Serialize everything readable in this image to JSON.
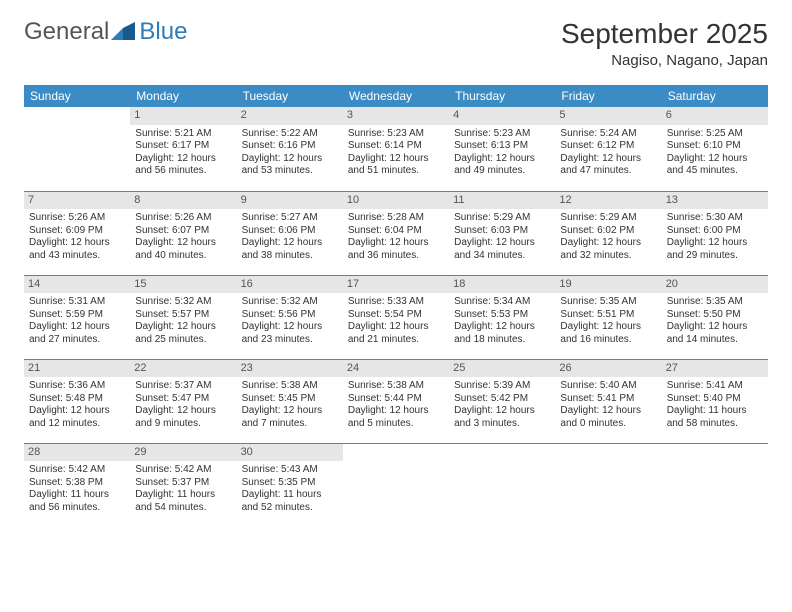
{
  "brand": {
    "general": "General",
    "blue": "Blue"
  },
  "title": "September 2025",
  "location": "Nagiso, Nagano, Japan",
  "colors": {
    "header_bg": "#3b8bc4",
    "header_text": "#ffffff",
    "daynum_bg": "#e6e6e6",
    "daynum_text": "#555555",
    "border": "#3b8bc4",
    "logo_gray": "#555555",
    "logo_blue": "#2d7bb8"
  },
  "weekdays": [
    "Sunday",
    "Monday",
    "Tuesday",
    "Wednesday",
    "Thursday",
    "Friday",
    "Saturday"
  ],
  "weeks": [
    [
      {
        "empty": true
      },
      {
        "n": "1",
        "sr": "Sunrise: 5:21 AM",
        "ss": "Sunset: 6:17 PM",
        "d1": "Daylight: 12 hours",
        "d2": "and 56 minutes."
      },
      {
        "n": "2",
        "sr": "Sunrise: 5:22 AM",
        "ss": "Sunset: 6:16 PM",
        "d1": "Daylight: 12 hours",
        "d2": "and 53 minutes."
      },
      {
        "n": "3",
        "sr": "Sunrise: 5:23 AM",
        "ss": "Sunset: 6:14 PM",
        "d1": "Daylight: 12 hours",
        "d2": "and 51 minutes."
      },
      {
        "n": "4",
        "sr": "Sunrise: 5:23 AM",
        "ss": "Sunset: 6:13 PM",
        "d1": "Daylight: 12 hours",
        "d2": "and 49 minutes."
      },
      {
        "n": "5",
        "sr": "Sunrise: 5:24 AM",
        "ss": "Sunset: 6:12 PM",
        "d1": "Daylight: 12 hours",
        "d2": "and 47 minutes."
      },
      {
        "n": "6",
        "sr": "Sunrise: 5:25 AM",
        "ss": "Sunset: 6:10 PM",
        "d1": "Daylight: 12 hours",
        "d2": "and 45 minutes."
      }
    ],
    [
      {
        "n": "7",
        "sr": "Sunrise: 5:26 AM",
        "ss": "Sunset: 6:09 PM",
        "d1": "Daylight: 12 hours",
        "d2": "and 43 minutes."
      },
      {
        "n": "8",
        "sr": "Sunrise: 5:26 AM",
        "ss": "Sunset: 6:07 PM",
        "d1": "Daylight: 12 hours",
        "d2": "and 40 minutes."
      },
      {
        "n": "9",
        "sr": "Sunrise: 5:27 AM",
        "ss": "Sunset: 6:06 PM",
        "d1": "Daylight: 12 hours",
        "d2": "and 38 minutes."
      },
      {
        "n": "10",
        "sr": "Sunrise: 5:28 AM",
        "ss": "Sunset: 6:04 PM",
        "d1": "Daylight: 12 hours",
        "d2": "and 36 minutes."
      },
      {
        "n": "11",
        "sr": "Sunrise: 5:29 AM",
        "ss": "Sunset: 6:03 PM",
        "d1": "Daylight: 12 hours",
        "d2": "and 34 minutes."
      },
      {
        "n": "12",
        "sr": "Sunrise: 5:29 AM",
        "ss": "Sunset: 6:02 PM",
        "d1": "Daylight: 12 hours",
        "d2": "and 32 minutes."
      },
      {
        "n": "13",
        "sr": "Sunrise: 5:30 AM",
        "ss": "Sunset: 6:00 PM",
        "d1": "Daylight: 12 hours",
        "d2": "and 29 minutes."
      }
    ],
    [
      {
        "n": "14",
        "sr": "Sunrise: 5:31 AM",
        "ss": "Sunset: 5:59 PM",
        "d1": "Daylight: 12 hours",
        "d2": "and 27 minutes."
      },
      {
        "n": "15",
        "sr": "Sunrise: 5:32 AM",
        "ss": "Sunset: 5:57 PM",
        "d1": "Daylight: 12 hours",
        "d2": "and 25 minutes."
      },
      {
        "n": "16",
        "sr": "Sunrise: 5:32 AM",
        "ss": "Sunset: 5:56 PM",
        "d1": "Daylight: 12 hours",
        "d2": "and 23 minutes."
      },
      {
        "n": "17",
        "sr": "Sunrise: 5:33 AM",
        "ss": "Sunset: 5:54 PM",
        "d1": "Daylight: 12 hours",
        "d2": "and 21 minutes."
      },
      {
        "n": "18",
        "sr": "Sunrise: 5:34 AM",
        "ss": "Sunset: 5:53 PM",
        "d1": "Daylight: 12 hours",
        "d2": "and 18 minutes."
      },
      {
        "n": "19",
        "sr": "Sunrise: 5:35 AM",
        "ss": "Sunset: 5:51 PM",
        "d1": "Daylight: 12 hours",
        "d2": "and 16 minutes."
      },
      {
        "n": "20",
        "sr": "Sunrise: 5:35 AM",
        "ss": "Sunset: 5:50 PM",
        "d1": "Daylight: 12 hours",
        "d2": "and 14 minutes."
      }
    ],
    [
      {
        "n": "21",
        "sr": "Sunrise: 5:36 AM",
        "ss": "Sunset: 5:48 PM",
        "d1": "Daylight: 12 hours",
        "d2": "and 12 minutes."
      },
      {
        "n": "22",
        "sr": "Sunrise: 5:37 AM",
        "ss": "Sunset: 5:47 PM",
        "d1": "Daylight: 12 hours",
        "d2": "and 9 minutes."
      },
      {
        "n": "23",
        "sr": "Sunrise: 5:38 AM",
        "ss": "Sunset: 5:45 PM",
        "d1": "Daylight: 12 hours",
        "d2": "and 7 minutes."
      },
      {
        "n": "24",
        "sr": "Sunrise: 5:38 AM",
        "ss": "Sunset: 5:44 PM",
        "d1": "Daylight: 12 hours",
        "d2": "and 5 minutes."
      },
      {
        "n": "25",
        "sr": "Sunrise: 5:39 AM",
        "ss": "Sunset: 5:42 PM",
        "d1": "Daylight: 12 hours",
        "d2": "and 3 minutes."
      },
      {
        "n": "26",
        "sr": "Sunrise: 5:40 AM",
        "ss": "Sunset: 5:41 PM",
        "d1": "Daylight: 12 hours",
        "d2": "and 0 minutes."
      },
      {
        "n": "27",
        "sr": "Sunrise: 5:41 AM",
        "ss": "Sunset: 5:40 PM",
        "d1": "Daylight: 11 hours",
        "d2": "and 58 minutes."
      }
    ],
    [
      {
        "n": "28",
        "sr": "Sunrise: 5:42 AM",
        "ss": "Sunset: 5:38 PM",
        "d1": "Daylight: 11 hours",
        "d2": "and 56 minutes."
      },
      {
        "n": "29",
        "sr": "Sunrise: 5:42 AM",
        "ss": "Sunset: 5:37 PM",
        "d1": "Daylight: 11 hours",
        "d2": "and 54 minutes."
      },
      {
        "n": "30",
        "sr": "Sunrise: 5:43 AM",
        "ss": "Sunset: 5:35 PM",
        "d1": "Daylight: 11 hours",
        "d2": "and 52 minutes."
      },
      {
        "empty": true
      },
      {
        "empty": true
      },
      {
        "empty": true
      },
      {
        "empty": true
      }
    ]
  ]
}
